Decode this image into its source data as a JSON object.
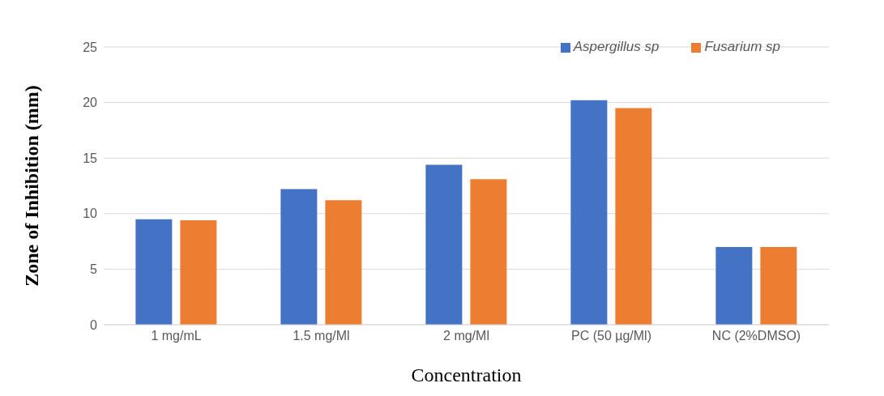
{
  "chart_data": {
    "type": "bar",
    "xlabel": "Concentration",
    "ylabel": "Zone of Inhibition (mm)",
    "categories": [
      "1 mg/mL",
      "1.5 mg/Ml",
      "2 mg/Ml",
      "PC (50 µg/Ml)",
      "NC (2%DMSO)"
    ],
    "series": [
      {
        "name": "Aspergillus sp",
        "color": "#4472c4",
        "values": [
          9.5,
          12.2,
          14.4,
          20.2,
          7.0
        ]
      },
      {
        "name": "Fusarium sp",
        "color": "#ed7d31",
        "values": [
          9.4,
          11.2,
          13.1,
          19.5,
          7.0
        ]
      }
    ],
    "ylim": [
      0,
      25
    ],
    "yticks": [
      0,
      5,
      10,
      15,
      20,
      25
    ],
    "grid": "y",
    "legend": "top right"
  }
}
